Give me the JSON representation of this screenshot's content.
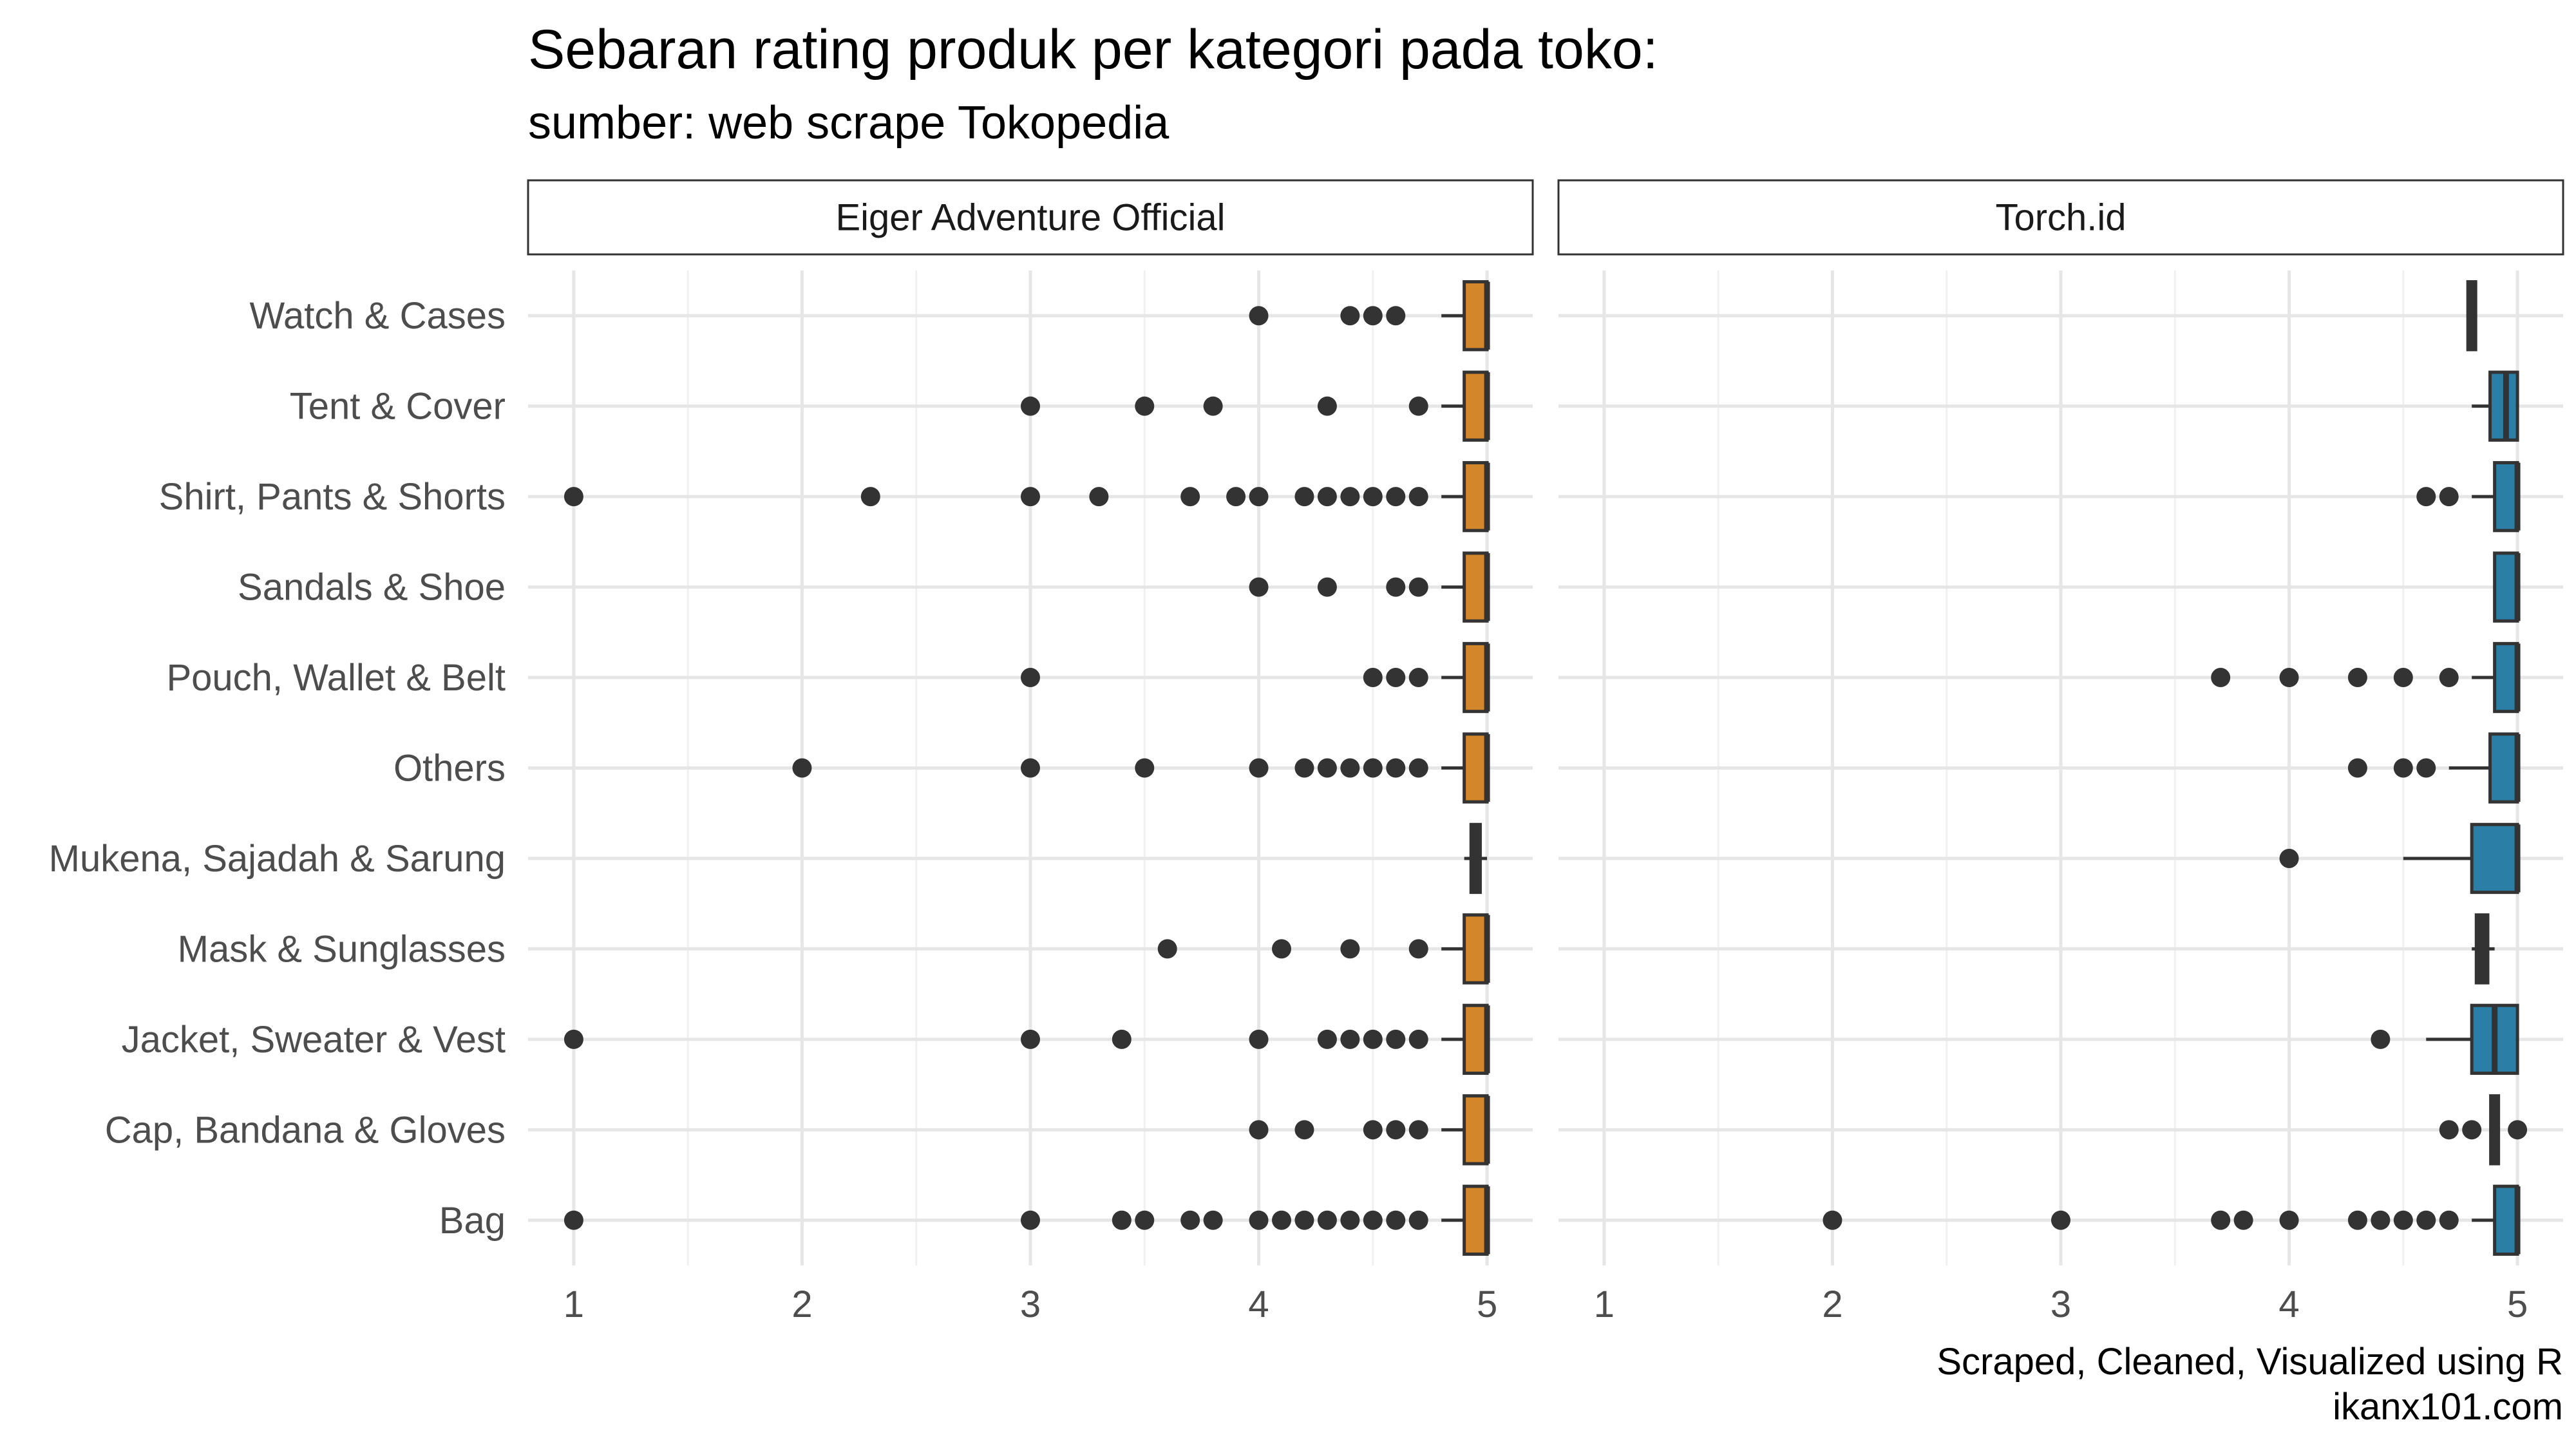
{
  "chart_data": {
    "type": "boxplot",
    "title": "Sebaran rating produk per kategori pada toko:",
    "subtitle": "sumber: web scrape Tokopedia",
    "caption": [
      "Scraped, Cleaned, Visualized using R",
      "ikanx101.com"
    ],
    "categories": [
      "Watch & Cases",
      "Tent & Cover",
      "Shirt, Pants & Shorts",
      "Sandals & Shoe",
      "Pouch, Wallet & Belt",
      "Others",
      "Mukena, Sajadah & Sarung",
      "Mask & Sunglasses",
      "Jacket, Sweater & Vest",
      "Cap, Bandana & Gloves",
      "Bag"
    ],
    "xlim": [
      0.8,
      5.2
    ],
    "x_ticks": [
      "1",
      "2",
      "3",
      "4",
      "5"
    ],
    "grid": true,
    "panels": [
      {
        "name": "Eiger Adventure Official",
        "color": "#d4862a",
        "boxes": [
          {
            "category": "Watch & Cases",
            "lower": 4.8,
            "q1": 4.9,
            "median": 5.0,
            "q3": 5.0,
            "upper": 5.0,
            "outliers": [
              4.0,
              4.4,
              4.5,
              4.6
            ]
          },
          {
            "category": "Tent & Cover",
            "lower": 4.8,
            "q1": 4.9,
            "median": 5.0,
            "q3": 5.0,
            "upper": 5.0,
            "outliers": [
              3.0,
              3.5,
              3.8,
              4.3,
              4.7
            ]
          },
          {
            "category": "Shirt, Pants & Shorts",
            "lower": 4.8,
            "q1": 4.9,
            "median": 5.0,
            "q3": 5.0,
            "upper": 5.0,
            "outliers": [
              1.0,
              2.3,
              3.0,
              3.3,
              3.7,
              3.9,
              4.0,
              4.2,
              4.3,
              4.4,
              4.5,
              4.6,
              4.7
            ]
          },
          {
            "category": "Sandals & Shoe",
            "lower": 4.8,
            "q1": 4.9,
            "median": 5.0,
            "q3": 5.0,
            "upper": 5.0,
            "outliers": [
              4.0,
              4.3,
              4.6,
              4.7
            ]
          },
          {
            "category": "Pouch, Wallet & Belt",
            "lower": 4.8,
            "q1": 4.9,
            "median": 5.0,
            "q3": 5.0,
            "upper": 5.0,
            "outliers": [
              3.0,
              4.5,
              4.6,
              4.7
            ]
          },
          {
            "category": "Others",
            "lower": 4.8,
            "q1": 4.9,
            "median": 5.0,
            "q3": 5.0,
            "upper": 5.0,
            "outliers": [
              2.0,
              3.0,
              3.5,
              4.0,
              4.2,
              4.3,
              4.4,
              4.5,
              4.6,
              4.7
            ]
          },
          {
            "category": "Mukena, Sajadah & Sarung",
            "lower": 4.9,
            "q1": 4.93,
            "median": 4.95,
            "q3": 4.97,
            "upper": 5.0,
            "outliers": [],
            "dark": true
          },
          {
            "category": "Mask & Sunglasses",
            "lower": 4.8,
            "q1": 4.9,
            "median": 5.0,
            "q3": 5.0,
            "upper": 5.0,
            "outliers": [
              3.6,
              4.1,
              4.4,
              4.7
            ]
          },
          {
            "category": "Jacket, Sweater & Vest",
            "lower": 4.8,
            "q1": 4.9,
            "median": 5.0,
            "q3": 5.0,
            "upper": 5.0,
            "outliers": [
              1.0,
              3.0,
              3.4,
              4.0,
              4.3,
              4.4,
              4.5,
              4.6,
              4.7
            ]
          },
          {
            "category": "Cap, Bandana & Gloves",
            "lower": 4.8,
            "q1": 4.9,
            "median": 5.0,
            "q3": 5.0,
            "upper": 5.0,
            "outliers": [
              4.0,
              4.2,
              4.5,
              4.6,
              4.7
            ]
          },
          {
            "category": "Bag",
            "lower": 4.8,
            "q1": 4.9,
            "median": 5.0,
            "q3": 5.0,
            "upper": 5.0,
            "outliers": [
              1.0,
              3.0,
              3.4,
              3.5,
              3.7,
              3.8,
              4.0,
              4.1,
              4.2,
              4.3,
              4.4,
              4.5,
              4.6,
              4.7
            ]
          }
        ]
      },
      {
        "name": "Torch.id",
        "color": "#2b7fa6",
        "boxes": [
          {
            "category": "Watch & Cases",
            "lower": 4.8,
            "q1": 4.8,
            "median": 4.8,
            "q3": 4.8,
            "upper": 4.8,
            "outliers": [],
            "dark": true
          },
          {
            "category": "Tent & Cover",
            "lower": 4.8,
            "q1": 4.88,
            "median": 4.95,
            "q3": 5.0,
            "upper": 5.0,
            "outliers": []
          },
          {
            "category": "Shirt, Pants & Shorts",
            "lower": 4.8,
            "q1": 4.9,
            "median": 5.0,
            "q3": 5.0,
            "upper": 5.0,
            "outliers": [
              4.6,
              4.7
            ]
          },
          {
            "category": "Sandals & Shoe",
            "lower": 4.9,
            "q1": 4.9,
            "median": 5.0,
            "q3": 5.0,
            "upper": 5.0,
            "outliers": []
          },
          {
            "category": "Pouch, Wallet & Belt",
            "lower": 4.8,
            "q1": 4.9,
            "median": 5.0,
            "q3": 5.0,
            "upper": 5.0,
            "outliers": [
              3.7,
              4.0,
              4.3,
              4.5,
              4.7
            ]
          },
          {
            "category": "Others",
            "lower": 4.7,
            "q1": 4.88,
            "median": 5.0,
            "q3": 5.0,
            "upper": 5.0,
            "outliers": [
              4.3,
              4.5,
              4.6
            ]
          },
          {
            "category": "Mukena, Sajadah & Sarung",
            "lower": 4.5,
            "q1": 4.8,
            "median": 5.0,
            "q3": 5.0,
            "upper": 5.0,
            "outliers": [
              4.0
            ]
          },
          {
            "category": "Mask & Sunglasses",
            "lower": 4.8,
            "q1": 4.82,
            "median": 4.85,
            "q3": 4.87,
            "upper": 4.9,
            "outliers": [],
            "dark": true
          },
          {
            "category": "Jacket, Sweater & Vest",
            "lower": 4.6,
            "q1": 4.8,
            "median": 4.9,
            "q3": 5.0,
            "upper": 5.0,
            "outliers": [
              4.4
            ]
          },
          {
            "category": "Cap, Bandana & Gloves",
            "lower": 4.9,
            "q1": 4.9,
            "median": 4.9,
            "q3": 4.9,
            "upper": 4.9,
            "outliers": [
              4.7,
              4.8,
              5.0
            ],
            "dark": true
          },
          {
            "category": "Bag",
            "lower": 4.8,
            "q1": 4.9,
            "median": 5.0,
            "q3": 5.0,
            "upper": 5.0,
            "outliers": [
              2.0,
              3.0,
              3.7,
              3.8,
              4.0,
              4.3,
              4.4,
              4.5,
              4.6,
              4.7
            ]
          }
        ]
      }
    ]
  }
}
